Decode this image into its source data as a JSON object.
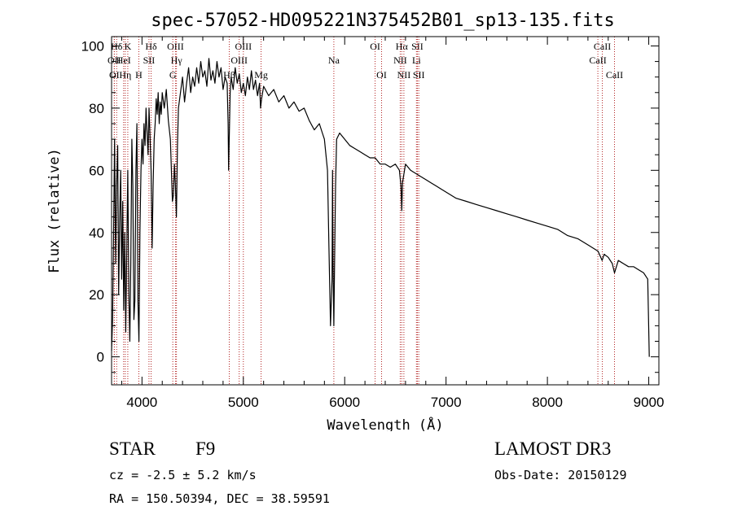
{
  "chart_data": {
    "type": "line",
    "title": "spec-57052-HD095221N375452B01_sp13-135.fits",
    "xlabel": "Wavelength (Å)",
    "ylabel": "Flux (relative)",
    "xlim": [
      3700,
      9100
    ],
    "ylim": [
      -9,
      103
    ],
    "xticks": [
      4000,
      5000,
      6000,
      7000,
      8000,
      9000
    ],
    "xtick_labels": [
      "4000",
      "5000",
      "6000",
      "7000",
      "8000",
      "9000"
    ],
    "yticks": [
      0,
      20,
      40,
      60,
      80,
      100
    ],
    "ytick_labels": [
      "0",
      "20",
      "40",
      "60",
      "80",
      "100"
    ],
    "series": [
      {
        "name": "spectrum",
        "points": [
          [
            3700,
            2
          ],
          [
            3710,
            12
          ],
          [
            3720,
            40
          ],
          [
            3730,
            70
          ],
          [
            3740,
            30
          ],
          [
            3750,
            55
          ],
          [
            3760,
            68
          ],
          [
            3770,
            20
          ],
          [
            3780,
            45
          ],
          [
            3790,
            60
          ],
          [
            3800,
            25
          ],
          [
            3810,
            50
          ],
          [
            3820,
            15
          ],
          [
            3830,
            40
          ],
          [
            3840,
            8
          ],
          [
            3850,
            35
          ],
          [
            3860,
            60
          ],
          [
            3870,
            20
          ],
          [
            3880,
            5
          ],
          [
            3890,
            30
          ],
          [
            3900,
            70
          ],
          [
            3910,
            55
          ],
          [
            3920,
            12
          ],
          [
            3930,
            18
          ],
          [
            3940,
            60
          ],
          [
            3950,
            75
          ],
          [
            3960,
            18
          ],
          [
            3970,
            5
          ],
          [
            3980,
            40
          ],
          [
            3990,
            60
          ],
          [
            4000,
            70
          ],
          [
            4010,
            62
          ],
          [
            4020,
            75
          ],
          [
            4030,
            68
          ],
          [
            4040,
            80
          ],
          [
            4050,
            72
          ],
          [
            4060,
            65
          ],
          [
            4070,
            80
          ],
          [
            4080,
            70
          ],
          [
            4090,
            60
          ],
          [
            4100,
            35
          ],
          [
            4110,
            55
          ],
          [
            4120,
            70
          ],
          [
            4130,
            75
          ],
          [
            4140,
            83
          ],
          [
            4150,
            78
          ],
          [
            4160,
            85
          ],
          [
            4170,
            75
          ],
          [
            4180,
            82
          ],
          [
            4190,
            78
          ],
          [
            4200,
            85
          ],
          [
            4220,
            80
          ],
          [
            4240,
            86
          ],
          [
            4260,
            76
          ],
          [
            4280,
            70
          ],
          [
            4300,
            50
          ],
          [
            4310,
            52
          ],
          [
            4320,
            62
          ],
          [
            4330,
            55
          ],
          [
            4340,
            45
          ],
          [
            4350,
            68
          ],
          [
            4360,
            80
          ],
          [
            4380,
            85
          ],
          [
            4400,
            90
          ],
          [
            4420,
            82
          ],
          [
            4440,
            88
          ],
          [
            4460,
            93
          ],
          [
            4480,
            85
          ],
          [
            4500,
            90
          ],
          [
            4520,
            87
          ],
          [
            4540,
            93
          ],
          [
            4560,
            88
          ],
          [
            4580,
            95
          ],
          [
            4600,
            90
          ],
          [
            4620,
            92
          ],
          [
            4640,
            87
          ],
          [
            4660,
            96
          ],
          [
            4680,
            89
          ],
          [
            4700,
            92
          ],
          [
            4720,
            88
          ],
          [
            4740,
            95
          ],
          [
            4760,
            90
          ],
          [
            4780,
            93
          ],
          [
            4800,
            86
          ],
          [
            4820,
            90
          ],
          [
            4840,
            88
          ],
          [
            4850,
            75
          ],
          [
            4855,
            60
          ],
          [
            4862,
            72
          ],
          [
            4870,
            85
          ],
          [
            4880,
            90
          ],
          [
            4900,
            86
          ],
          [
            4920,
            93
          ],
          [
            4940,
            88
          ],
          [
            4960,
            91
          ],
          [
            4980,
            85
          ],
          [
            5000,
            88
          ],
          [
            5020,
            84
          ],
          [
            5040,
            90
          ],
          [
            5060,
            86
          ],
          [
            5080,
            92
          ],
          [
            5100,
            86
          ],
          [
            5120,
            89
          ],
          [
            5140,
            84
          ],
          [
            5160,
            88
          ],
          [
            5170,
            80
          ],
          [
            5180,
            83
          ],
          [
            5200,
            87
          ],
          [
            5250,
            84
          ],
          [
            5300,
            86
          ],
          [
            5350,
            82
          ],
          [
            5400,
            84
          ],
          [
            5450,
            80
          ],
          [
            5500,
            82
          ],
          [
            5550,
            79
          ],
          [
            5600,
            80
          ],
          [
            5650,
            76
          ],
          [
            5700,
            73
          ],
          [
            5750,
            75
          ],
          [
            5780,
            72
          ],
          [
            5800,
            70
          ],
          [
            5830,
            60
          ],
          [
            5845,
            35
          ],
          [
            5860,
            10
          ],
          [
            5875,
            25
          ],
          [
            5880,
            60
          ],
          [
            5885,
            30
          ],
          [
            5893,
            10
          ],
          [
            5900,
            30
          ],
          [
            5910,
            55
          ],
          [
            5920,
            70
          ],
          [
            5950,
            72
          ],
          [
            6000,
            70
          ],
          [
            6050,
            68
          ],
          [
            6100,
            67
          ],
          [
            6150,
            66
          ],
          [
            6200,
            65
          ],
          [
            6250,
            64
          ],
          [
            6300,
            64
          ],
          [
            6350,
            62
          ],
          [
            6400,
            62
          ],
          [
            6450,
            61
          ],
          [
            6500,
            62
          ],
          [
            6540,
            60
          ],
          [
            6555,
            55
          ],
          [
            6563,
            47
          ],
          [
            6570,
            56
          ],
          [
            6600,
            62
          ],
          [
            6650,
            60
          ],
          [
            6700,
            59
          ],
          [
            6750,
            58
          ],
          [
            6800,
            57
          ],
          [
            6850,
            56
          ],
          [
            6900,
            55
          ],
          [
            6950,
            54
          ],
          [
            7000,
            53
          ],
          [
            7100,
            51
          ],
          [
            7200,
            50
          ],
          [
            7300,
            49
          ],
          [
            7400,
            48
          ],
          [
            7500,
            47
          ],
          [
            7600,
            46
          ],
          [
            7700,
            45
          ],
          [
            7800,
            44
          ],
          [
            7900,
            43
          ],
          [
            8000,
            42
          ],
          [
            8100,
            41
          ],
          [
            8200,
            39
          ],
          [
            8300,
            38
          ],
          [
            8400,
            36
          ],
          [
            8500,
            34
          ],
          [
            8540,
            31
          ],
          [
            8560,
            33
          ],
          [
            8600,
            32
          ],
          [
            8640,
            30
          ],
          [
            8662,
            27
          ],
          [
            8700,
            31
          ],
          [
            8750,
            30
          ],
          [
            8800,
            29
          ],
          [
            8850,
            29
          ],
          [
            8900,
            28
          ],
          [
            8950,
            27
          ],
          [
            8990,
            25
          ],
          [
            9000,
            8
          ],
          [
            9005,
            0
          ]
        ]
      }
    ],
    "line_markers": [
      {
        "label": "Hδ",
        "x": 3750,
        "row": 1
      },
      {
        "label": "K",
        "x": 3860,
        "row": 1
      },
      {
        "label": "Hδ",
        "x": 4090,
        "row": 1
      },
      {
        "label": "OIII",
        "x": 4330,
        "row": 1
      },
      {
        "label": "OIII",
        "x": 5000,
        "row": 1
      },
      {
        "label": "OI",
        "x": 6300,
        "row": 1
      },
      {
        "label": "Hα",
        "x": 6563,
        "row": 1
      },
      {
        "label": "SII",
        "x": 6717,
        "row": 1
      },
      {
        "label": "CaII",
        "x": 8542,
        "row": 1
      },
      {
        "label": "OII",
        "x": 3727,
        "row": 2
      },
      {
        "label": "HeI",
        "x": 3819,
        "row": 2
      },
      {
        "label": "SII",
        "x": 4069,
        "row": 2
      },
      {
        "label": "Hγ",
        "x": 4340,
        "row": 2
      },
      {
        "label": "OIII",
        "x": 4959,
        "row": 2
      },
      {
        "label": "Na",
        "x": 5893,
        "row": 2
      },
      {
        "label": "NII",
        "x": 6548,
        "row": 2
      },
      {
        "label": "Li",
        "x": 6708,
        "row": 2
      },
      {
        "label": "CaII",
        "x": 8498,
        "row": 2
      },
      {
        "label": "OI",
        "x": 3727,
        "row": 3
      },
      {
        "label": "Hη",
        "x": 3835,
        "row": 3
      },
      {
        "label": "H",
        "x": 3969,
        "row": 3
      },
      {
        "label": "G",
        "x": 4304,
        "row": 3
      },
      {
        "label": "Hβ",
        "x": 4861,
        "row": 3
      },
      {
        "label": "Mg",
        "x": 5175,
        "row": 3
      },
      {
        "label": "OI",
        "x": 6364,
        "row": 3
      },
      {
        "label": "NII",
        "x": 6584,
        "row": 3
      },
      {
        "label": "SII",
        "x": 6731,
        "row": 3
      },
      {
        "label": "CaII",
        "x": 8662,
        "row": 3
      }
    ],
    "line_marker_color": "#b22222"
  },
  "info": {
    "class_label": "STAR",
    "subclass": "F9",
    "survey": "LAMOST DR3",
    "velocity": "cz = -2.5 ± 5.2 km/s",
    "obs_date": "Obs-Date: 20150129",
    "coords": "RA = 150.50394, DEC =  38.59591"
  }
}
